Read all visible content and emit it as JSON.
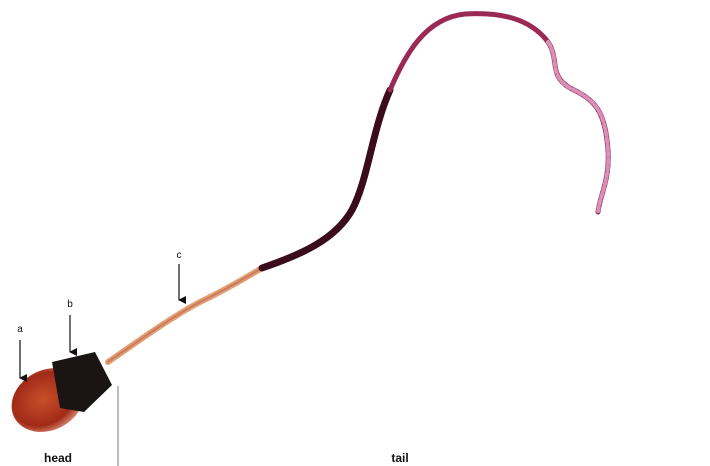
{
  "annotations": [
    "a",
    "b",
    "c"
  ],
  "regions": [
    "head",
    "tail"
  ]
}
